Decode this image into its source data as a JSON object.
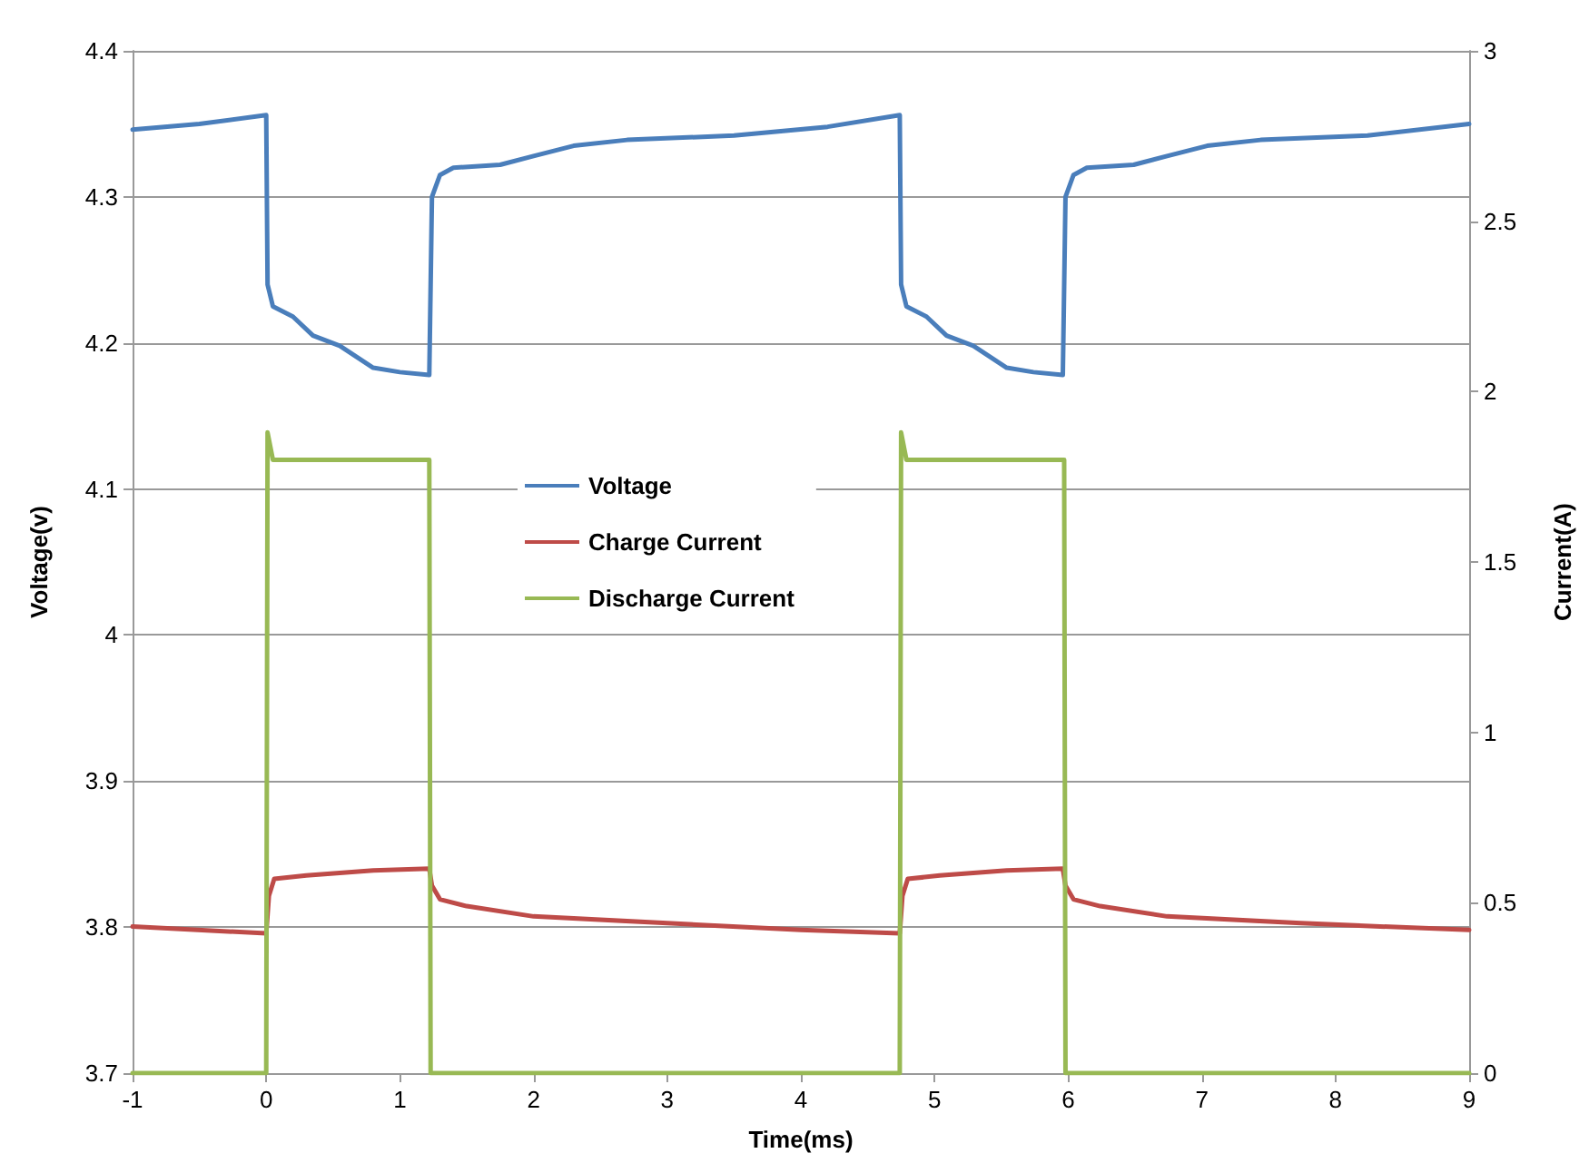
{
  "chart_data": {
    "type": "line",
    "xlabel": "Time(ms)",
    "ylabel": "Voltage(v)",
    "y2label": "Current(A)",
    "xlim": [
      -1,
      9
    ],
    "xticks": [
      -1,
      0,
      1,
      2,
      3,
      4,
      5,
      6,
      7,
      8,
      9
    ],
    "ylim": [
      3.7,
      4.4
    ],
    "yticks": [
      3.7,
      3.8,
      3.9,
      4,
      4.1,
      4.2,
      4.3,
      4.4
    ],
    "y2lim": [
      0,
      3
    ],
    "y2ticks": [
      0,
      0.5,
      1,
      1.5,
      2,
      2.5,
      3
    ],
    "grid": "y",
    "legend": "center",
    "marker": "none",
    "line_style": "solid",
    "series": [
      {
        "name": "Voltage",
        "color": "#4a7ebb",
        "x": [
          -1,
          -0.5,
          0,
          0.01,
          0.05,
          0.2,
          0.35,
          0.55,
          0.8,
          1.0,
          1.22,
          1.24,
          1.3,
          1.4,
          1.75,
          2.0,
          2.3,
          2.7,
          3.5,
          4.2,
          4.74,
          4.75,
          4.79,
          4.94,
          5.09,
          5.29,
          5.54,
          5.74,
          5.96,
          5.98,
          6.04,
          6.14,
          6.49,
          6.74,
          7.04,
          7.44,
          8.24,
          9
        ],
        "values": [
          4.346,
          4.35,
          4.356,
          4.24,
          4.225,
          4.218,
          4.205,
          4.198,
          4.183,
          4.18,
          4.178,
          4.3,
          4.315,
          4.32,
          4.322,
          4.328,
          4.335,
          4.339,
          4.342,
          4.348,
          4.356,
          4.24,
          4.225,
          4.218,
          4.205,
          4.198,
          4.183,
          4.18,
          4.178,
          4.3,
          4.315,
          4.32,
          4.322,
          4.328,
          4.335,
          4.339,
          4.342,
          4.35
        ]
      },
      {
        "name": "Charge Current",
        "color": "#be4b48",
        "axis": "y2",
        "x": [
          -1,
          0,
          0.02,
          0.06,
          0.3,
          0.8,
          1.22,
          1.24,
          1.3,
          1.5,
          2,
          3,
          4,
          4.74,
          4.76,
          4.8,
          5.04,
          5.54,
          5.96,
          5.98,
          6.04,
          6.24,
          6.74,
          7.74,
          9
        ],
        "values": [
          0.43,
          0.41,
          0.52,
          0.57,
          0.58,
          0.595,
          0.6,
          0.55,
          0.51,
          0.49,
          0.46,
          0.44,
          0.42,
          0.41,
          0.52,
          0.57,
          0.58,
          0.595,
          0.6,
          0.55,
          0.51,
          0.49,
          0.46,
          0.44,
          0.42
        ]
      },
      {
        "name": "Discharge Current",
        "color": "#98b954",
        "axis": "y2",
        "x": [
          -1,
          0,
          0.01,
          0.05,
          1.22,
          1.23,
          4.74,
          4.75,
          4.79,
          5.97,
          5.98,
          9
        ],
        "values": [
          0,
          0,
          1.88,
          1.8,
          1.8,
          0,
          0,
          1.88,
          1.8,
          1.8,
          0,
          0
        ]
      }
    ]
  }
}
